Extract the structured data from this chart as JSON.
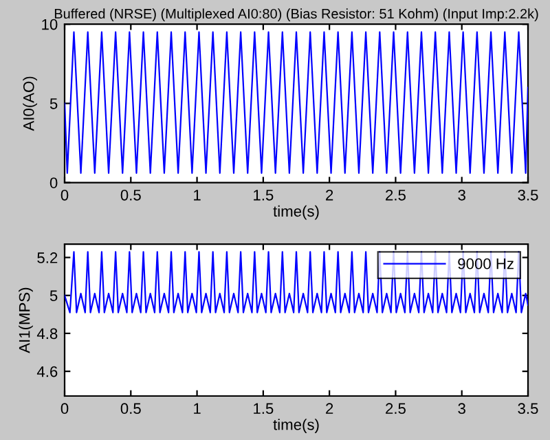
{
  "chart_data": [
    {
      "type": "line",
      "title": "Buffered (NRSE) (Multiplexed AI0:80) (Bias Resistor: 51 Kohm) (Input Imp:2.2k)",
      "xlabel": "time(s)",
      "ylabel": "AI0(AO)",
      "xlim": [
        0,
        3.5
      ],
      "ylim": [
        0,
        10
      ],
      "xticks": [
        0,
        0.5,
        1,
        1.5,
        2,
        2.5,
        3,
        3.5
      ],
      "yticks": [
        0,
        5,
        10
      ],
      "grid": false,
      "legend": false,
      "series": [
        {
          "color": "#0000ff",
          "x": [
            0,
            0.02,
            0.07,
            0.1225,
            0.175,
            0.2275,
            0.28,
            0.3325,
            0.385,
            0.4375,
            0.49,
            0.5425,
            0.595,
            0.6475,
            0.7,
            0.7525,
            0.805,
            0.8575,
            0.91,
            0.9625,
            1.015,
            1.0675,
            1.12,
            1.1725,
            1.225,
            1.2775,
            1.33,
            1.3825,
            1.435,
            1.4875,
            1.54,
            1.5925,
            1.645,
            1.6975,
            1.75,
            1.8025,
            1.855,
            1.9075,
            1.96,
            2.0125,
            2.065,
            2.1175,
            2.17,
            2.2225,
            2.275,
            2.3275,
            2.38,
            2.4325,
            2.485,
            2.5375,
            2.59,
            2.6425,
            2.695,
            2.7475,
            2.8,
            2.8525,
            2.905,
            2.9575,
            3.01,
            3.0625,
            3.115,
            3.1675,
            3.22,
            3.2725,
            3.325,
            3.3775,
            3.43,
            3.4825,
            3.5
          ],
          "values": [
            5,
            0.6,
            9.5,
            0.6,
            9.5,
            0.6,
            9.5,
            0.6,
            9.5,
            0.6,
            9.5,
            0.6,
            9.5,
            0.6,
            9.5,
            0.6,
            9.5,
            0.6,
            9.5,
            0.6,
            9.5,
            0.6,
            9.5,
            0.6,
            9.5,
            0.6,
            9.5,
            0.6,
            9.5,
            0.6,
            9.5,
            0.6,
            9.5,
            0.6,
            9.5,
            0.6,
            9.5,
            0.6,
            9.5,
            0.6,
            9.5,
            0.6,
            9.5,
            0.6,
            9.5,
            0.6,
            9.5,
            0.6,
            9.5,
            0.6,
            9.5,
            0.6,
            9.5,
            0.6,
            9.5,
            0.6,
            9.5,
            0.6,
            9.5,
            0.6,
            9.5,
            0.6,
            9.5,
            0.6,
            9.5,
            0.6,
            9.5,
            0.6,
            6
          ]
        }
      ]
    },
    {
      "type": "line",
      "xlabel": "time(s)",
      "ylabel": "AI1(MPS)",
      "xlim": [
        0,
        3.5
      ],
      "ylim": [
        4.47,
        5.27
      ],
      "xticks": [
        0,
        0.5,
        1,
        1.5,
        2,
        2.5,
        3,
        3.5
      ],
      "yticks": [
        4.6,
        4.8,
        5,
        5.2
      ],
      "grid": false,
      "legend": "top right",
      "series": [
        {
          "name": "9000 Hz",
          "color": "#0000ff",
          "x": [
            0,
            0.04,
            0.07,
            0.09,
            0.1225,
            0.155,
            0.175,
            0.195,
            0.2275,
            0.26,
            0.28,
            0.3,
            0.3325,
            0.365,
            0.385,
            0.405,
            0.4375,
            0.47,
            0.49,
            0.51,
            0.5425,
            0.575,
            0.595,
            0.615,
            0.6475,
            0.68,
            0.7,
            0.72,
            0.7525,
            0.785,
            0.805,
            0.825,
            0.8575,
            0.89,
            0.91,
            0.93,
            0.9625,
            0.995,
            1.015,
            1.035,
            1.0675,
            1.1,
            1.12,
            1.14,
            1.1725,
            1.205,
            1.225,
            1.245,
            1.2775,
            1.31,
            1.33,
            1.35,
            1.3825,
            1.415,
            1.435,
            1.455,
            1.4875,
            1.52,
            1.54,
            1.56,
            1.5925,
            1.625,
            1.645,
            1.665,
            1.6975,
            1.73,
            1.75,
            1.77,
            1.8025,
            1.835,
            1.855,
            1.875,
            1.9075,
            1.94,
            1.96,
            1.98,
            2.0125,
            2.045,
            2.065,
            2.085,
            2.1175,
            2.15,
            2.17,
            2.19,
            2.2225,
            2.255,
            2.275,
            2.295,
            2.3275,
            2.36,
            2.38,
            2.4,
            2.4325,
            2.465,
            2.485,
            2.505,
            2.5375,
            2.57,
            2.59,
            2.61,
            2.6425,
            2.675,
            2.695,
            2.715,
            2.7475,
            2.78,
            2.8,
            2.82,
            2.8525,
            2.885,
            2.905,
            2.925,
            2.9575,
            2.99,
            3.01,
            3.03,
            3.0625,
            3.095,
            3.115,
            3.135,
            3.1675,
            3.2,
            3.22,
            3.24,
            3.2725,
            3.305,
            3.325,
            3.345,
            3.3775,
            3.41,
            3.43,
            3.45,
            3.4825,
            3.5
          ],
          "values": [
            5.0,
            4.91,
            5.23,
            4.91,
            5.01,
            4.91,
            5.23,
            4.91,
            5.01,
            4.91,
            5.23,
            4.91,
            5.01,
            4.91,
            5.23,
            4.91,
            5.01,
            4.91,
            5.23,
            4.91,
            5.01,
            4.91,
            5.23,
            4.91,
            5.01,
            4.91,
            5.23,
            4.91,
            5.01,
            4.91,
            5.23,
            4.91,
            5.01,
            4.91,
            5.23,
            4.91,
            5.01,
            4.91,
            5.23,
            4.91,
            5.01,
            4.91,
            5.23,
            4.91,
            5.01,
            4.91,
            5.23,
            4.91,
            5.01,
            4.91,
            5.23,
            4.91,
            5.01,
            4.91,
            5.23,
            4.91,
            5.01,
            4.91,
            5.23,
            4.91,
            5.01,
            4.91,
            5.23,
            4.91,
            5.01,
            4.91,
            5.23,
            4.91,
            5.01,
            4.91,
            5.23,
            4.91,
            5.01,
            4.91,
            5.23,
            4.91,
            5.01,
            4.91,
            5.23,
            4.91,
            5.01,
            4.91,
            5.23,
            4.91,
            5.01,
            4.91,
            5.23,
            4.91,
            5.01,
            4.91,
            5.23,
            4.91,
            5.01,
            4.91,
            5.23,
            4.91,
            5.01,
            4.91,
            5.23,
            4.91,
            5.01,
            4.91,
            5.23,
            4.91,
            5.01,
            4.91,
            5.23,
            4.91,
            5.01,
            4.91,
            5.23,
            4.91,
            5.01,
            4.91,
            5.23,
            4.91,
            5.01,
            4.91,
            5.23,
            4.91,
            5.01,
            4.91,
            5.23,
            4.91,
            5.01,
            4.91,
            5.23,
            4.91,
            5.01,
            4.91,
            5.23,
            4.91,
            5.01,
            4.95
          ]
        }
      ]
    }
  ]
}
